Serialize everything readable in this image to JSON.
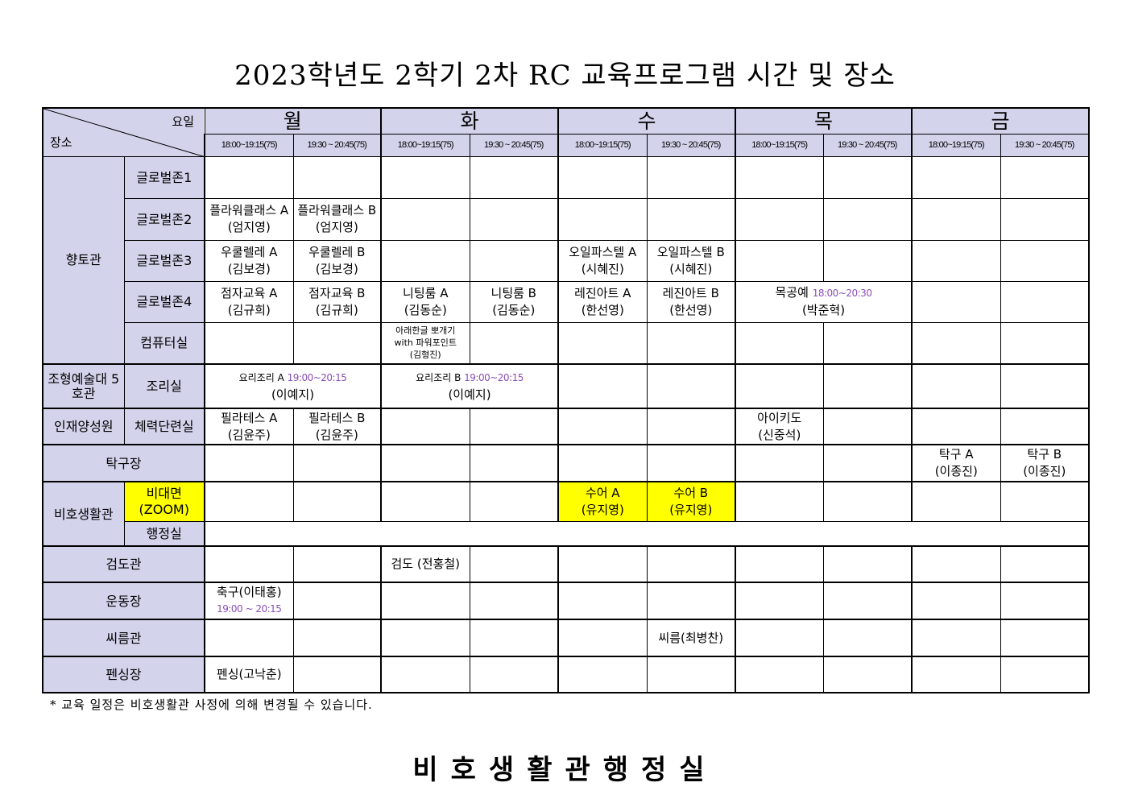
{
  "title": "2023학년도 2학기 2차 RC 교육프로그램 시간 및 장소",
  "header": {
    "day_label": "요일",
    "place_label": "장소",
    "days": [
      "월",
      "화",
      "수",
      "목",
      "금"
    ],
    "slots": [
      "18:00~19:15(75)",
      "19:30 ~ 20:45(75)"
    ]
  },
  "highlight_color": "#ffff00",
  "header_color": "#d3d3ec",
  "time_color": "#8a4fb5",
  "rows": [
    {
      "group": "향토관",
      "room": "글로벌존1",
      "cells": [
        "",
        "",
        "",
        "",
        "",
        "",
        "",
        "",
        "",
        ""
      ]
    },
    {
      "room": "글로벌존2",
      "cells": [
        {
          "l1": "플라워클래스 A",
          "l2": "(엄지영)"
        },
        {
          "l1": "플라워클래스 B",
          "l2": "(엄지영)"
        },
        "",
        "",
        "",
        "",
        "",
        "",
        "",
        ""
      ]
    },
    {
      "room": "글로벌존3",
      "cells": [
        {
          "l1": "우쿨렐레 A",
          "l2": "(김보경)"
        },
        {
          "l1": "우쿨렐레 B",
          "l2": "(김보경)"
        },
        "",
        "",
        {
          "l1": "오일파스텔 A",
          "l2": "(시혜진)"
        },
        {
          "l1": "오일파스텔 B",
          "l2": "(시혜진)"
        },
        "",
        "",
        "",
        ""
      ]
    },
    {
      "room": "글로벌존4",
      "cells": [
        {
          "l1": "점자교육 A",
          "l2": "(김규희)"
        },
        {
          "l1": "점자교육 B",
          "l2": "(김규희)"
        },
        {
          "l1": "니팅룸 A",
          "l2": "(김동순)"
        },
        {
          "l1": "니팅룸 B",
          "l2": "(김동순)"
        },
        {
          "l1": "레진아트 A",
          "l2": "(한선영)"
        },
        {
          "l1": "레진아트 B",
          "l2": "(한선영)"
        },
        {
          "l1": "목공예",
          "time": "18:00~20:30",
          "l2": "(박준혁)"
        },
        "",
        ""
      ]
    },
    {
      "room": "컴퓨터실",
      "cells": [
        "",
        "",
        {
          "l1": "아래한글 뽀개기",
          "l1b": "with 파워포인트",
          "l2": "(김형진)"
        },
        "",
        "",
        "",
        "",
        "",
        "",
        ""
      ]
    },
    {
      "group": "조형예술대 5호관",
      "room": "조리실",
      "cells": [
        {
          "l1": "요리조리 A",
          "time": "19:00~20:15",
          "l2": "(이예지)"
        },
        {
          "l1": "요리조리 B",
          "time": "19:00~20:15",
          "l2": "(이예지)"
        },
        "",
        "",
        "",
        "",
        "",
        ""
      ]
    },
    {
      "group": "인재양성원",
      "room": "체력단련실",
      "cells": [
        {
          "l1": "필라테스 A",
          "l2": "(김윤주)"
        },
        {
          "l1": "필라테스 B",
          "l2": "(김윤주)"
        },
        "",
        "",
        "",
        "",
        {
          "l1": "아이키도",
          "l2": "(신중석)"
        },
        "",
        "",
        ""
      ]
    },
    {
      "group": "탁구장",
      "cells": [
        "",
        "",
        "",
        "",
        "",
        "",
        "",
        "",
        {
          "l1": "탁구 A",
          "l2": "(이종진)"
        },
        {
          "l1": "탁구 B",
          "l2": "(이종진)"
        }
      ]
    },
    {
      "group": "비호생활관",
      "room": "비대면 (ZOOM)",
      "cells": [
        "",
        "",
        "",
        "",
        {
          "l1": "수어 A",
          "l2": "(유지영)"
        },
        {
          "l1": "수어 B",
          "l2": "(유지영)"
        },
        "",
        "",
        "",
        ""
      ]
    },
    {
      "room": "행정실",
      "cells": [
        ""
      ]
    },
    {
      "group": "검도관",
      "cells": [
        "",
        "",
        {
          "l1": "검도 (전홍철)"
        },
        "",
        "",
        "",
        "",
        "",
        "",
        ""
      ]
    },
    {
      "group": "운동장",
      "cells": [
        {
          "l1": "축구(이태홍)",
          "time2": "19:00 ~ 20:15"
        },
        "",
        "",
        "",
        "",
        "",
        "",
        "",
        "",
        ""
      ]
    },
    {
      "group": "씨름관",
      "cells": [
        "",
        "",
        "",
        "",
        "",
        {
          "l1": "씨름(최병찬)"
        },
        "",
        "",
        "",
        ""
      ]
    },
    {
      "group": "펜싱장",
      "cells": [
        {
          "l1": "펜싱(고낙춘)"
        },
        "",
        "",
        "",
        "",
        "",
        "",
        "",
        "",
        ""
      ]
    }
  ],
  "note": "* 교육 일정은 비호생활관 사정에 의해 변경될 수 있습니다.",
  "footer": "비호생활관행정실"
}
